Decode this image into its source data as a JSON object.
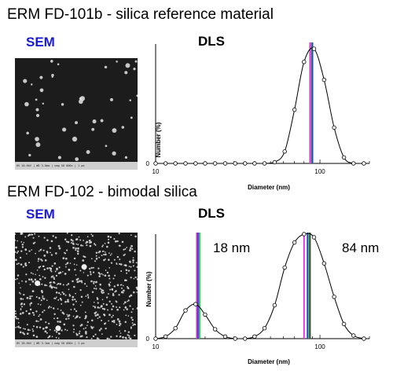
{
  "panels": [
    {
      "title": "ERM FD-101b - silica reference material",
      "sem_label": "SEM",
      "sem_scalebar_text": "HV 20.0kV | WD 3.0mm | mag 50 000x | 1 μm",
      "chart_data": {
        "type": "line",
        "title": "DLS",
        "xlabel": "Diameter (nm)",
        "ylabel": "Number (%)",
        "x_scale": "log",
        "xlim": [
          10,
          200
        ],
        "x_ticks": [
          10,
          100
        ],
        "y_ticks": [
          0
        ],
        "ylim": [
          0,
          1
        ],
        "series": [
          {
            "x": [
              10,
              11.5,
              13.2,
              15.2,
              17.5,
              20,
              23,
              26.5,
              30.5,
              35,
              40,
              46,
              53,
              61,
              70,
              80,
              92,
              106,
              122,
              140,
              160,
              185
            ],
            "y": [
              0,
              0,
              0,
              0,
              0,
              0,
              0,
              0,
              0,
              0,
              0,
              0,
              0.01,
              0.1,
              0.45,
              0.85,
              0.96,
              0.7,
              0.3,
              0.05,
              0,
              0
            ]
          }
        ],
        "vertical_lines": [
          {
            "x": 87,
            "color": "#e33be3"
          },
          {
            "x": 89,
            "color": "#33c233"
          },
          {
            "x": 90,
            "color": "#3040d8"
          }
        ],
        "annotations": []
      }
    },
    {
      "title": "ERM FD-102 - bimodal silica",
      "sem_label": "SEM",
      "sem_scalebar_text": "HV 20.0kV | WD 3.1mm | mag 50 000x | 1 μm",
      "chart_data": {
        "type": "line",
        "title": "DLS",
        "xlabel": "Diameter (nm)",
        "ylabel": "Number (%)",
        "x_scale": "log",
        "xlim": [
          10,
          200
        ],
        "x_ticks": [
          10,
          100
        ],
        "y_ticks": [
          0
        ],
        "ylim": [
          0,
          1
        ],
        "series": [
          {
            "x": [
              10,
              11.5,
              13.2,
              15.2,
              17.5,
              20,
              23,
              26.5,
              30.5,
              35,
              40,
              46,
              53,
              61,
              70,
              80,
              92,
              106,
              122,
              140,
              160,
              185
            ],
            "y": [
              0,
              0.02,
              0.1,
              0.27,
              0.33,
              0.23,
              0.09,
              0.02,
              0,
              0,
              0.02,
              0.1,
              0.32,
              0.68,
              0.92,
              1.0,
              0.97,
              0.72,
              0.4,
              0.14,
              0.03,
              0
            ]
          }
        ],
        "vertical_lines": [
          {
            "x": 17.8,
            "color": "#e33be3"
          },
          {
            "x": 18.1,
            "color": "#3040d8"
          },
          {
            "x": 18.5,
            "color": "#33c233"
          },
          {
            "x": 80,
            "color": "#e33be3"
          },
          {
            "x": 84,
            "color": "#3040d8"
          },
          {
            "x": 86,
            "color": "#33c233"
          },
          {
            "x": 87,
            "color": "#444444"
          }
        ],
        "annotations": [
          "18 nm",
          "84 nm"
        ]
      }
    }
  ]
}
